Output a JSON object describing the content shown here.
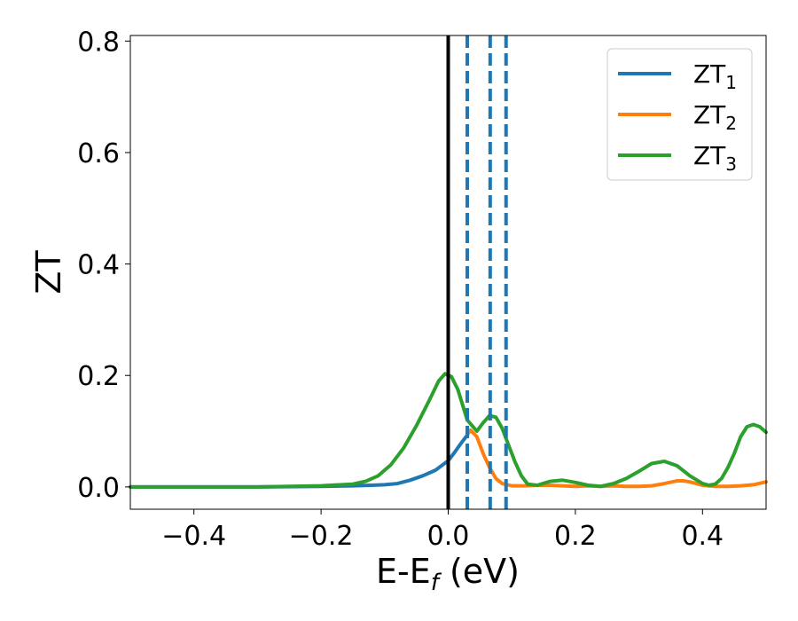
{
  "chart_data": {
    "type": "line",
    "xlabel": {
      "main": "E-E",
      "sub": "f",
      "tail": " (eV)"
    },
    "ylabel": "ZT",
    "xlim": [
      -0.5,
      0.5
    ],
    "ylim": [
      -0.04,
      0.81
    ],
    "xticks": [
      {
        "value": -0.4,
        "label": "−0.4"
      },
      {
        "value": -0.2,
        "label": "−0.2"
      },
      {
        "value": 0.0,
        "label": "0.0"
      },
      {
        "value": 0.2,
        "label": "0.2"
      },
      {
        "value": 0.4,
        "label": "0.4"
      }
    ],
    "yticks": [
      {
        "value": 0.0,
        "label": "0.0"
      },
      {
        "value": 0.2,
        "label": "0.2"
      },
      {
        "value": 0.4,
        "label": "0.4"
      },
      {
        "value": 0.6,
        "label": "0.6"
      },
      {
        "value": 0.8,
        "label": "0.8"
      }
    ],
    "grid": false,
    "legend_position": "top-right",
    "series": [
      {
        "name": "ZT",
        "sub": "1",
        "color": "#1f77b4",
        "x": [
          -0.5,
          -0.3,
          -0.2,
          -0.15,
          -0.12,
          -0.1,
          -0.08,
          -0.06,
          -0.04,
          -0.02,
          0.0,
          0.01,
          0.02,
          0.03
        ],
        "y": [
          0.0,
          0.0,
          0.001,
          0.002,
          0.003,
          0.004,
          0.006,
          0.012,
          0.02,
          0.03,
          0.047,
          0.062,
          0.078,
          0.093
        ]
      },
      {
        "name": "ZT",
        "sub": "2",
        "color": "#ff7f0e",
        "x": [
          0.03,
          0.035,
          0.045,
          0.055,
          0.065,
          0.075,
          0.085,
          0.1,
          0.12,
          0.14,
          0.16,
          0.18,
          0.2,
          0.22,
          0.24,
          0.26,
          0.28,
          0.3,
          0.32,
          0.34,
          0.36,
          0.37,
          0.38,
          0.4,
          0.42,
          0.44,
          0.46,
          0.48,
          0.5
        ],
        "y": [
          0.093,
          0.102,
          0.09,
          0.06,
          0.035,
          0.015,
          0.006,
          0.002,
          0.002,
          0.003,
          0.003,
          0.002,
          0.001,
          0.002,
          0.001,
          0.002,
          0.001,
          0.001,
          0.002,
          0.006,
          0.011,
          0.011,
          0.009,
          0.003,
          0.001,
          0.001,
          0.002,
          0.004,
          0.009
        ]
      },
      {
        "name": "ZT",
        "sub": "3",
        "color": "#2ca02c",
        "x": [
          -0.5,
          -0.3,
          -0.2,
          -0.15,
          -0.13,
          -0.11,
          -0.09,
          -0.07,
          -0.05,
          -0.03,
          -0.015,
          -0.005,
          0.005,
          0.015,
          0.03,
          0.045,
          0.055,
          0.065,
          0.075,
          0.085,
          0.095,
          0.105,
          0.115,
          0.125,
          0.14,
          0.16,
          0.18,
          0.2,
          0.22,
          0.24,
          0.26,
          0.28,
          0.3,
          0.32,
          0.34,
          0.36,
          0.38,
          0.4,
          0.41,
          0.42,
          0.43,
          0.44,
          0.45,
          0.46,
          0.47,
          0.48,
          0.49,
          0.5
        ],
        "y": [
          0.0,
          0.0,
          0.002,
          0.005,
          0.01,
          0.02,
          0.04,
          0.07,
          0.11,
          0.155,
          0.19,
          0.203,
          0.198,
          0.175,
          0.12,
          0.1,
          0.115,
          0.128,
          0.125,
          0.105,
          0.075,
          0.045,
          0.02,
          0.005,
          0.003,
          0.01,
          0.012,
          0.008,
          0.003,
          0.001,
          0.006,
          0.015,
          0.028,
          0.042,
          0.046,
          0.038,
          0.02,
          0.006,
          0.003,
          0.005,
          0.015,
          0.035,
          0.06,
          0.09,
          0.108,
          0.112,
          0.108,
          0.098
        ]
      }
    ],
    "vlines": [
      {
        "x": 0.0,
        "color": "#000000",
        "style": "solid"
      },
      {
        "x": 0.03,
        "color": "#1f77b4",
        "style": "dashed"
      },
      {
        "x": 0.066,
        "color": "#1f77b4",
        "style": "dashed"
      },
      {
        "x": 0.091,
        "color": "#1f77b4",
        "style": "dashed"
      }
    ]
  }
}
